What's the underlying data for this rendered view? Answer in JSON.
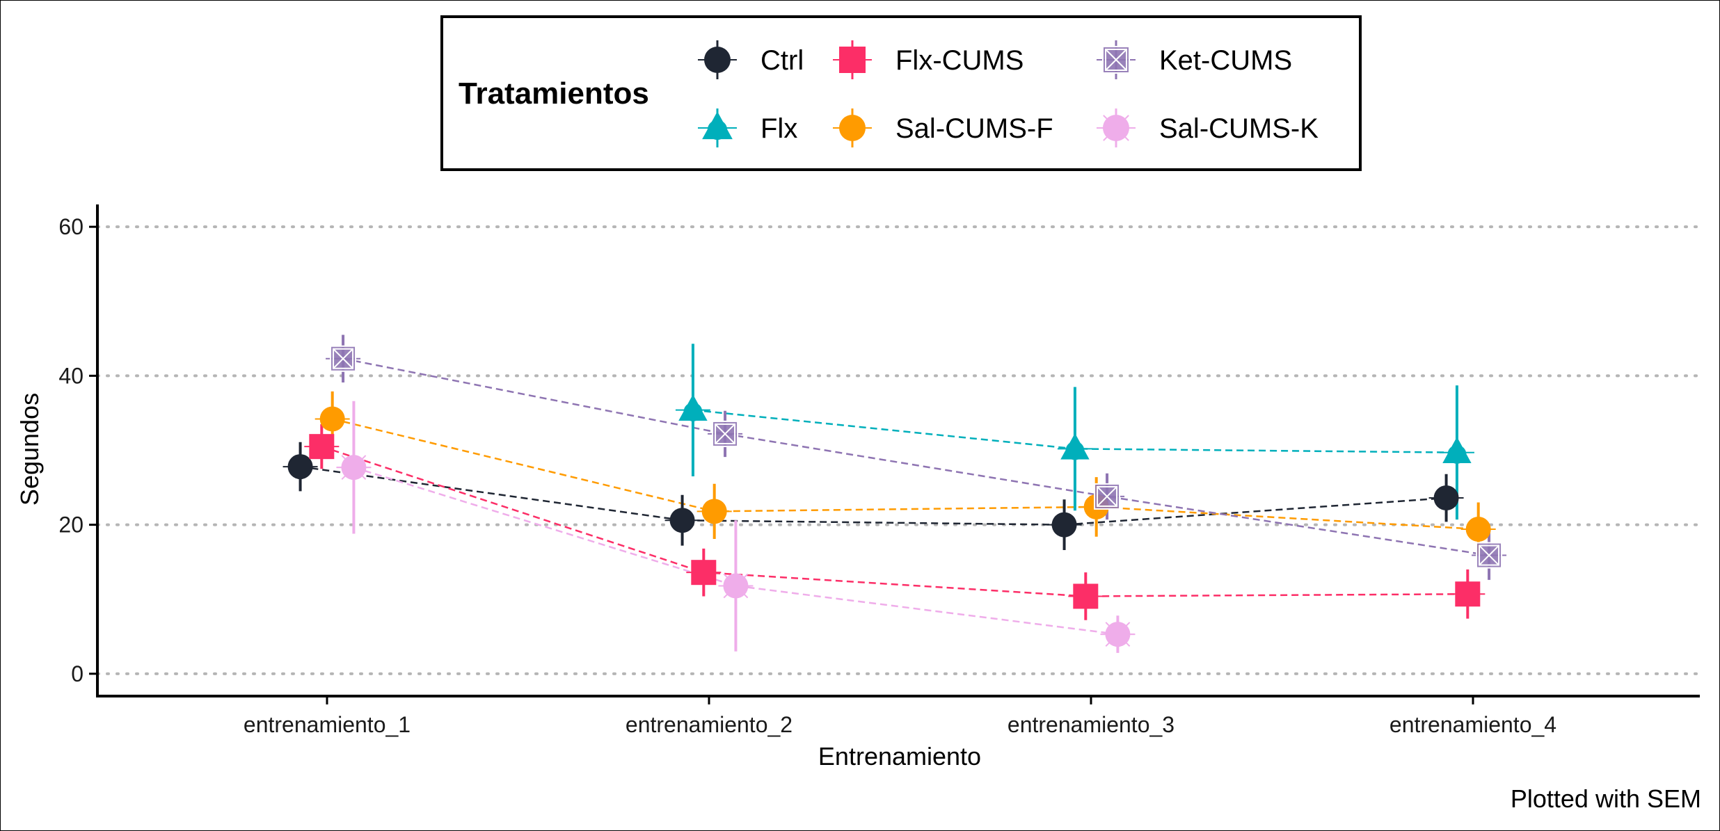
{
  "chart_data": {
    "type": "line",
    "title": "",
    "xlabel": "Entrenamiento",
    "ylabel": "Segundos",
    "caption": "Plotted with SEM",
    "categories": [
      "entrenamiento_1",
      "entrenamiento_2",
      "entrenamiento_3",
      "entrenamiento_4"
    ],
    "ylim": [
      -3,
      63
    ],
    "yticks": [
      0,
      20,
      40,
      60
    ],
    "grid": "horizontal dotted",
    "legend": {
      "title": "Tratamientos",
      "position": "top",
      "entries": [
        "Ctrl",
        "Flx",
        "Flx-CUMS",
        "Sal-CUMS-F",
        "Ket-CUMS",
        "Sal-CUMS-K"
      ]
    },
    "series": [
      {
        "name": "Ctrl",
        "color": "#1f2633",
        "marker": "circle",
        "values": [
          27.8,
          20.6,
          20.0,
          23.6
        ],
        "sem": [
          3.3,
          3.4,
          3.4,
          3.2
        ]
      },
      {
        "name": "Flx",
        "color": "#00AFBB",
        "marker": "triangle",
        "values": [
          null,
          35.4,
          30.2,
          29.7
        ],
        "sem": [
          null,
          8.9,
          8.3,
          9.0
        ]
      },
      {
        "name": "Flx-CUMS",
        "color": "#FC2E67",
        "marker": "square",
        "values": [
          30.5,
          13.6,
          10.4,
          10.7
        ],
        "sem": [
          3.0,
          3.2,
          3.2,
          3.3
        ]
      },
      {
        "name": "Sal-CUMS-F",
        "color": "#FF9B00",
        "marker": "circle",
        "values": [
          34.2,
          21.8,
          22.4,
          19.4
        ],
        "sem": [
          3.7,
          3.7,
          4.0,
          3.6
        ]
      },
      {
        "name": "Ket-CUMS",
        "color": "#8E74B2",
        "marker": "square-x",
        "values": [
          42.3,
          32.2,
          23.8,
          15.9
        ],
        "sem": [
          3.2,
          3.1,
          3.1,
          3.3
        ]
      },
      {
        "name": "Sal-CUMS-K",
        "color": "#EFADEA",
        "marker": "circle-star",
        "values": [
          27.7,
          11.8,
          5.3,
          null
        ],
        "sem": [
          8.9,
          8.8,
          2.5,
          null
        ]
      }
    ]
  }
}
